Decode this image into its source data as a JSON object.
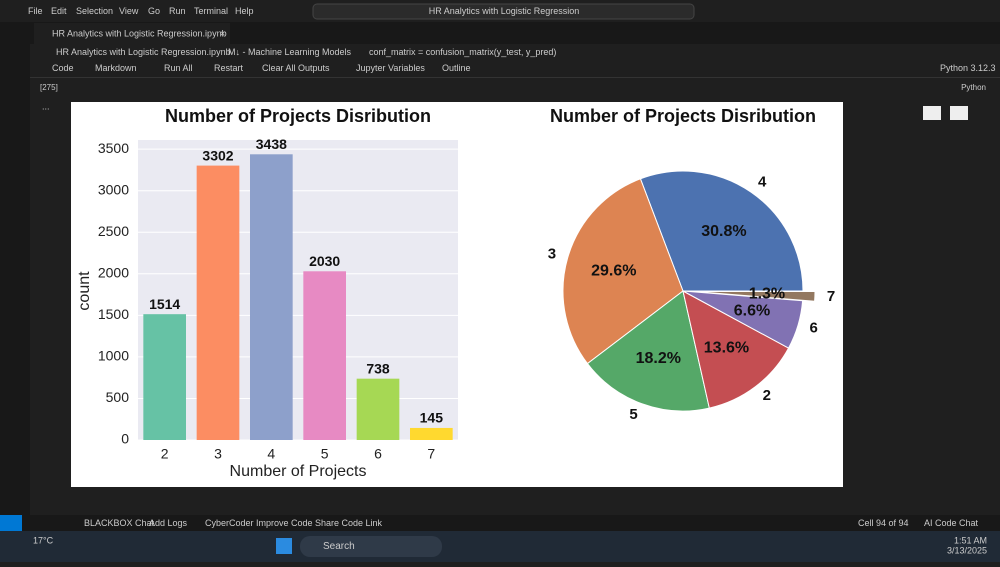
{
  "window": {
    "menu": [
      "File",
      "Edit",
      "Selection",
      "View",
      "Go",
      "Run",
      "Terminal",
      "Help"
    ],
    "search": "HR Analytics with Logistic Regression"
  },
  "tab": "HR Analytics with Logistic Regression.ipynb",
  "breadcrumb": [
    "HR Analytics with Logistic Regression.ipynb",
    "M↓ - Machine Learning Models",
    "conf_matrix = confusion_matrix(y_test, y_pred)"
  ],
  "toolbar": [
    "Code",
    "Markdown",
    "Run All",
    "Restart",
    "Clear All Outputs",
    "Jupyter Variables",
    "Outline"
  ],
  "kernel": "Python 3.12.3",
  "cell": {
    "execution": "[275]",
    "language": "Python"
  },
  "status_bar": {
    "left": [
      "BLACKBOX Chat",
      "Add Logs",
      "CyberCoder",
      "Improve Code",
      "Share Code Link"
    ],
    "right": [
      "Cell 94 of 94",
      "AI Code Chat"
    ]
  },
  "taskbar": {
    "weather": "17°C",
    "search": "Search",
    "time": "1:51 AM",
    "date": "3/13/2025"
  },
  "chart_data": [
    {
      "type": "bar",
      "title": "Number of Projects Disribution",
      "x_label": "Number of Projects",
      "y_label": "count",
      "categories": [
        "2",
        "3",
        "4",
        "5",
        "6",
        "7"
      ],
      "values": [
        1514,
        3302,
        3438,
        2030,
        738,
        145
      ],
      "colors": [
        "#66c2a5",
        "#fc8d62",
        "#8da0cb",
        "#e78ac3",
        "#a6d854",
        "#ffd92f"
      ],
      "ylim": [
        0,
        3610
      ],
      "yticks": [
        0,
        500,
        1000,
        1500,
        2000,
        2500,
        3000,
        3500
      ],
      "grid": true
    },
    {
      "type": "pie",
      "title": "Number of Projects Disribution",
      "categories": [
        "4",
        "3",
        "5",
        "2",
        "6",
        "7"
      ],
      "values": [
        30.8,
        29.6,
        18.2,
        13.6,
        6.6,
        1.3
      ],
      "value_labels": [
        "30.8%",
        "29.6%",
        "18.2%",
        "13.6%",
        "6.6%",
        "1.3%"
      ],
      "colors": [
        "#4c72b0",
        "#dd8452",
        "#55a868",
        "#c44e52",
        "#8172b3",
        "#937860"
      ],
      "explode": [
        0,
        0,
        0,
        0,
        0,
        0.1
      ]
    }
  ]
}
